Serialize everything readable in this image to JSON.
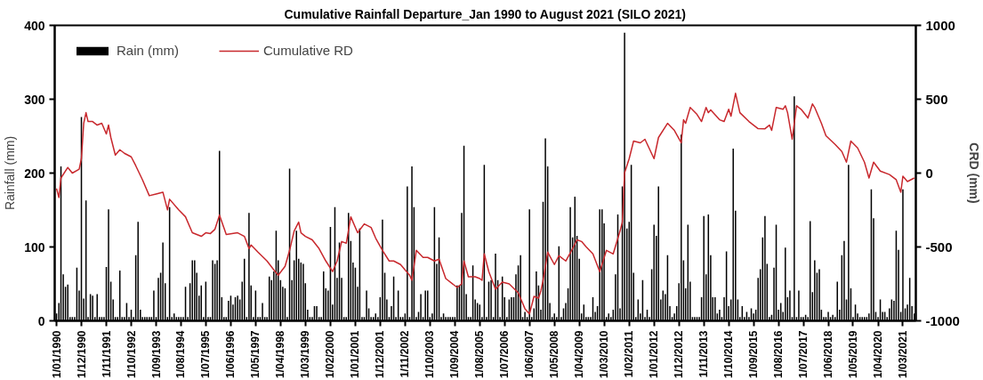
{
  "chart_data": {
    "type": "bar",
    "title": "Cumulative Rainfall Departure_Jan 1990 to August 2021 (SILO 2021)",
    "ylabel": "Rainfall (mm)",
    "y2label": "CRD (mm)",
    "xlim": [
      "1989-12-07",
      "2021-08-22"
    ],
    "xticks": [
      {
        "value": "1990-01-01",
        "label": "1/01/1990"
      },
      {
        "value": "1990-12-01",
        "label": "1/12/1990"
      },
      {
        "value": "1991-11-01",
        "label": "1/11/1991"
      },
      {
        "value": "1992-10-01",
        "label": "1/10/1992"
      },
      {
        "value": "1993-09-01",
        "label": "1/09/1993"
      },
      {
        "value": "1994-08-01",
        "label": "1/08/1994"
      },
      {
        "value": "1995-07-01",
        "label": "1/07/1995"
      },
      {
        "value": "1996-06-01",
        "label": "1/06/1996"
      },
      {
        "value": "1997-05-01",
        "label": "1/05/1997"
      },
      {
        "value": "1998-04-01",
        "label": "1/04/1998"
      },
      {
        "value": "1999-03-01",
        "label": "1/03/1999"
      },
      {
        "value": "2000-02-01",
        "label": "1/02/2000"
      },
      {
        "value": "2001-01-01",
        "label": "1/01/2001"
      },
      {
        "value": "2001-12-01",
        "label": "1/12/2001"
      },
      {
        "value": "2002-11-01",
        "label": "1/11/2002"
      },
      {
        "value": "2003-10-01",
        "label": "1/10/2003"
      },
      {
        "value": "2004-09-01",
        "label": "1/09/2004"
      },
      {
        "value": "2005-08-01",
        "label": "1/08/2005"
      },
      {
        "value": "2006-07-01",
        "label": "1/07/2006"
      },
      {
        "value": "2007-06-01",
        "label": "1/06/2007"
      },
      {
        "value": "2008-05-01",
        "label": "1/05/2008"
      },
      {
        "value": "2009-04-01",
        "label": "1/04/2009"
      },
      {
        "value": "2010-03-01",
        "label": "1/03/2010"
      },
      {
        "value": "2011-02-01",
        "label": "1/02/2011"
      },
      {
        "value": "2012-01-01",
        "label": "1/01/2012"
      },
      {
        "value": "2012-12-01",
        "label": "1/12/2012"
      },
      {
        "value": "2013-11-01",
        "label": "1/11/2013"
      },
      {
        "value": "2014-10-01",
        "label": "1/10/2014"
      },
      {
        "value": "2015-09-01",
        "label": "1/09/2015"
      },
      {
        "value": "2016-08-01",
        "label": "1/08/2016"
      },
      {
        "value": "2017-07-01",
        "label": "1/07/2017"
      },
      {
        "value": "2018-06-01",
        "label": "1/06/2018"
      },
      {
        "value": "2019-05-01",
        "label": "1/05/2019"
      },
      {
        "value": "2020-04-01",
        "label": "1/04/2020"
      },
      {
        "value": "2021-03-01",
        "label": "1/03/2021"
      }
    ],
    "ylim": [
      0,
      400
    ],
    "yticks": [
      0,
      100,
      200,
      300,
      400
    ],
    "y2lim": [
      -1000,
      1000
    ],
    "y2ticks": [
      -1000,
      -500,
      0,
      500,
      1000
    ],
    "grid": false,
    "legend": "top left",
    "series": [
      {
        "name": "Rain (mm)",
        "color": "#000000",
        "x": [
          "1990-01",
          "1990-02",
          "1990-03",
          "1990-04",
          "1990-05",
          "1990-06",
          "1990-07",
          "1990-08",
          "1990-09",
          "1990-10",
          "1990-11",
          "1990-12",
          "1991-01",
          "1991-02",
          "1991-03",
          "1991-04",
          "1991-05",
          "1991-06",
          "1991-07",
          "1991-08",
          "1991-09",
          "1991-10",
          "1991-11",
          "1991-12",
          "1992-01",
          "1992-02",
          "1992-03",
          "1992-04",
          "1992-05",
          "1992-06",
          "1992-07",
          "1992-08",
          "1992-09",
          "1992-10",
          "1992-11",
          "1992-12",
          "1993-01",
          "1993-02",
          "1993-03",
          "1993-04",
          "1993-05",
          "1993-06",
          "1993-07",
          "1993-08",
          "1993-09",
          "1993-10",
          "1993-11",
          "1993-12",
          "1994-01",
          "1994-02",
          "1994-03",
          "1994-04",
          "1994-05",
          "1994-06",
          "1994-07",
          "1994-08",
          "1994-09",
          "1994-10",
          "1994-11",
          "1994-12",
          "1995-01",
          "1995-02",
          "1995-03",
          "1995-04",
          "1995-05",
          "1995-06",
          "1995-07",
          "1995-08",
          "1995-09",
          "1995-10",
          "1995-11",
          "1995-12",
          "1996-01",
          "1996-02",
          "1996-03",
          "1996-04",
          "1996-05",
          "1996-06",
          "1996-07",
          "1996-08",
          "1996-09",
          "1996-10",
          "1996-11",
          "1996-12",
          "1997-01",
          "1997-02",
          "1997-03",
          "1997-04",
          "1997-05",
          "1997-06",
          "1997-07",
          "1997-08",
          "1997-09",
          "1997-10",
          "1997-11",
          "1997-12",
          "1998-01",
          "1998-02",
          "1998-03",
          "1998-04",
          "1998-05",
          "1998-06",
          "1998-07",
          "1998-08",
          "1998-09",
          "1998-10",
          "1998-11",
          "1998-12",
          "1999-01",
          "1999-02",
          "1999-03",
          "1999-04",
          "1999-05",
          "1999-06",
          "1999-07",
          "1999-08",
          "1999-09",
          "1999-10",
          "1999-11",
          "1999-12",
          "2000-01",
          "2000-02",
          "2000-03",
          "2000-04",
          "2000-05",
          "2000-06",
          "2000-07",
          "2000-08",
          "2000-09",
          "2000-10",
          "2000-11",
          "2000-12",
          "2001-01",
          "2001-02",
          "2001-03",
          "2001-04",
          "2001-05",
          "2001-06",
          "2001-07",
          "2001-08",
          "2001-09",
          "2001-10",
          "2001-11",
          "2001-12",
          "2002-01",
          "2002-02",
          "2002-03",
          "2002-04",
          "2002-05",
          "2002-06",
          "2002-07",
          "2002-08",
          "2002-09",
          "2002-10",
          "2002-11",
          "2002-12",
          "2003-01",
          "2003-02",
          "2003-03",
          "2003-04",
          "2003-05",
          "2003-06",
          "2003-07",
          "2003-08",
          "2003-09",
          "2003-10",
          "2003-11",
          "2003-12",
          "2004-01",
          "2004-02",
          "2004-03",
          "2004-04",
          "2004-05",
          "2004-06",
          "2004-07",
          "2004-08",
          "2004-09",
          "2004-10",
          "2004-11",
          "2004-12",
          "2005-01",
          "2005-02",
          "2005-03",
          "2005-04",
          "2005-05",
          "2005-06",
          "2005-07",
          "2005-08",
          "2005-09",
          "2005-10",
          "2005-11",
          "2005-12",
          "2006-01",
          "2006-02",
          "2006-03",
          "2006-04",
          "2006-05",
          "2006-06",
          "2006-07",
          "2006-08",
          "2006-09",
          "2006-10",
          "2006-11",
          "2006-12",
          "2007-01",
          "2007-02",
          "2007-03",
          "2007-04",
          "2007-05",
          "2007-06",
          "2007-07",
          "2007-08",
          "2007-09",
          "2007-10",
          "2007-11",
          "2007-12",
          "2008-01",
          "2008-02",
          "2008-03",
          "2008-04",
          "2008-05",
          "2008-06",
          "2008-07",
          "2008-08",
          "2008-09",
          "2008-10",
          "2008-11",
          "2008-12",
          "2009-01",
          "2009-02",
          "2009-03",
          "2009-04",
          "2009-05",
          "2009-06",
          "2009-07",
          "2009-08",
          "2009-09",
          "2009-10",
          "2009-11",
          "2009-12",
          "2010-01",
          "2010-02",
          "2010-03",
          "2010-04",
          "2010-05",
          "2010-06",
          "2010-07",
          "2010-08",
          "2010-09",
          "2010-10",
          "2010-11",
          "2010-12",
          "2011-01",
          "2011-02",
          "2011-03",
          "2011-04",
          "2011-05",
          "2011-06",
          "2011-07",
          "2011-08",
          "2011-09",
          "2011-10",
          "2011-11",
          "2011-12",
          "2012-01",
          "2012-02",
          "2012-03",
          "2012-04",
          "2012-05",
          "2012-06",
          "2012-07",
          "2012-08",
          "2012-09",
          "2012-10",
          "2012-11",
          "2012-12",
          "2013-01",
          "2013-02",
          "2013-03",
          "2013-04",
          "2013-05",
          "2013-06",
          "2013-07",
          "2013-08",
          "2013-09",
          "2013-10",
          "2013-11",
          "2013-12",
          "2014-01",
          "2014-02",
          "2014-03",
          "2014-04",
          "2014-05",
          "2014-06",
          "2014-07",
          "2014-08",
          "2014-09",
          "2014-10",
          "2014-11",
          "2014-12",
          "2015-01",
          "2015-02",
          "2015-03",
          "2015-04",
          "2015-05",
          "2015-06",
          "2015-07",
          "2015-08",
          "2015-09",
          "2015-10",
          "2015-11",
          "2015-12",
          "2016-01",
          "2016-02",
          "2016-03",
          "2016-04",
          "2016-05",
          "2016-06",
          "2016-07",
          "2016-08",
          "2016-09",
          "2016-10",
          "2016-11",
          "2016-12",
          "2017-01",
          "2017-02",
          "2017-03",
          "2017-04",
          "2017-05",
          "2017-06",
          "2017-07",
          "2017-08",
          "2017-09",
          "2017-10",
          "2017-11",
          "2017-12",
          "2018-01",
          "2018-02",
          "2018-03",
          "2018-04",
          "2018-05",
          "2018-06",
          "2018-07",
          "2018-08",
          "2018-09",
          "2018-10",
          "2018-11",
          "2018-12",
          "2019-01",
          "2019-02",
          "2019-03",
          "2019-04",
          "2019-05",
          "2019-06",
          "2019-07",
          "2019-08",
          "2019-09",
          "2019-10",
          "2019-11",
          "2019-12",
          "2020-01",
          "2020-02",
          "2020-03",
          "2020-04",
          "2020-05",
          "2020-06",
          "2020-07",
          "2020-08",
          "2020-09",
          "2020-10",
          "2020-11",
          "2020-12",
          "2021-01",
          "2021-02",
          "2021-03",
          "2021-04",
          "2021-05",
          "2021-06",
          "2021-07",
          "2021-08"
        ],
        "values": [
          10,
          24,
          209,
          63,
          46,
          49,
          5,
          5,
          5,
          72,
          41,
          276,
          30,
          163,
          5,
          36,
          34,
          5,
          36,
          5,
          5,
          5,
          73,
          151,
          53,
          29,
          5,
          5,
          68,
          5,
          5,
          24,
          5,
          15,
          5,
          89,
          134,
          15,
          5,
          5,
          5,
          5,
          5,
          41,
          5,
          58,
          65,
          106,
          51,
          5,
          154,
          5,
          10,
          5,
          5,
          5,
          5,
          46,
          5,
          51,
          82,
          82,
          65,
          34,
          48,
          5,
          53,
          5,
          5,
          82,
          77,
          82,
          230,
          32,
          5,
          5,
          27,
          34,
          22,
          32,
          34,
          29,
          53,
          84,
          5,
          146,
          48,
          5,
          41,
          5,
          5,
          24,
          5,
          5,
          60,
          55,
          67,
          122,
          82,
          55,
          46,
          44,
          5,
          206,
          55,
          82,
          122,
          84,
          79,
          77,
          51,
          15,
          5,
          5,
          20,
          20,
          5,
          5,
          67,
          44,
          41,
          127,
          22,
          154,
          58,
          106,
          58,
          5,
          5,
          146,
          108,
          79,
          72,
          46,
          125,
          5,
          5,
          41,
          17,
          5,
          5,
          10,
          5,
          32,
          137,
          65,
          29,
          5,
          20,
          60,
          5,
          41,
          5,
          5,
          10,
          182,
          5,
          209,
          154,
          5,
          12,
          36,
          5,
          41,
          41,
          5,
          10,
          154,
          77,
          113,
          5,
          10,
          5,
          5,
          5,
          5,
          5,
          48,
          48,
          146,
          237,
          36,
          5,
          5,
          75,
          29,
          24,
          22,
          5,
          211,
          5,
          53,
          55,
          5,
          91,
          55,
          5,
          60,
          32,
          5,
          29,
          32,
          32,
          63,
          75,
          89,
          5,
          12,
          5,
          151,
          5,
          17,
          67,
          48,
          15,
          161,
          247,
          209,
          24,
          5,
          10,
          5,
          101,
          5,
          17,
          24,
          44,
          154,
          113,
          168,
          115,
          84,
          10,
          22,
          5,
          5,
          5,
          32,
          12,
          20,
          151,
          151,
          132,
          5,
          10,
          5,
          15,
          63,
          144,
          17,
          182,
          390,
          125,
          134,
          211,
          65,
          5,
          29,
          10,
          55,
          5,
          15,
          5,
          70,
          130,
          115,
          182,
          29,
          41,
          36,
          89,
          20,
          5,
          10,
          20,
          51,
          252,
          82,
          44,
          130,
          53,
          5,
          5,
          5,
          5,
          32,
          142,
          63,
          144,
          89,
          32,
          32,
          10,
          15,
          5,
          32,
          94,
          20,
          29,
          233,
          149,
          29,
          5,
          20,
          5,
          12,
          5,
          17,
          10,
          15,
          58,
          70,
          113,
          142,
          77,
          5,
          8,
          72,
          130,
          15,
          24,
          12,
          99,
          32,
          41,
          5,
          304,
          5,
          41,
          5,
          5,
          8,
          5,
          135,
          39,
          82,
          65,
          70,
          15,
          5,
          5,
          12,
          5,
          8,
          5,
          53,
          15,
          89,
          108,
          29,
          211,
          44,
          5,
          22,
          10,
          5,
          5,
          5,
          5,
          10,
          178,
          139,
          12,
          5,
          29,
          12,
          12,
          5,
          17,
          29,
          27,
          122,
          96,
          12,
          178,
          17,
          22,
          58,
          20,
          10
        ]
      },
      {
        "name": "Cumulative RD",
        "type": "line",
        "axis": "y2",
        "color": "#c8282d",
        "x": [
          "1990-01",
          "1990-02",
          "1990-03",
          "1990-06",
          "1990-08",
          "1990-11",
          "1990-12",
          "1991-01",
          "1991-02",
          "1991-03",
          "1991-05",
          "1991-07",
          "1991-09",
          "1991-11",
          "1991-12",
          "1992-01",
          "1992-03",
          "1992-05",
          "1992-07",
          "1992-10",
          "1992-12",
          "1993-03",
          "1993-06",
          "1993-09",
          "1993-12",
          "1994-02",
          "1994-03",
          "1994-07",
          "1994-10",
          "1995-01",
          "1995-05",
          "1995-07",
          "1995-09",
          "1995-11",
          "1996-01",
          "1996-04",
          "1996-09",
          "1996-12",
          "1997-02",
          "1997-03",
          "1997-06",
          "1997-10",
          "1998-01",
          "1998-03",
          "1998-06",
          "1998-08",
          "1998-10",
          "1998-12",
          "1999-01",
          "1999-03",
          "1999-06",
          "1999-09",
          "1999-12",
          "2000-03",
          "2000-05",
          "2000-07",
          "2000-09",
          "2000-11",
          "2001-02",
          "2001-05",
          "2001-08",
          "2001-10",
          "2002-01",
          "2002-04",
          "2002-06",
          "2002-09",
          "2003-01",
          "2003-02",
          "2003-04",
          "2003-07",
          "2003-09",
          "2003-12",
          "2004-02",
          "2004-05",
          "2004-10",
          "2004-12",
          "2005-01",
          "2005-03",
          "2005-06",
          "2005-08",
          "2005-09",
          "2005-10",
          "2005-12",
          "2006-03",
          "2006-06",
          "2006-09",
          "2007-01",
          "2007-04",
          "2007-06",
          "2007-08",
          "2007-10",
          "2007-11",
          "2007-12",
          "2008-02",
          "2008-05",
          "2008-07",
          "2008-10",
          "2009-01",
          "2009-03",
          "2009-05",
          "2009-07",
          "2009-10",
          "2010-01",
          "2010-04",
          "2010-07",
          "2010-10",
          "2010-11",
          "2010-12",
          "2011-02",
          "2011-04",
          "2011-07",
          "2011-09",
          "2012-01",
          "2012-03",
          "2012-07",
          "2012-10",
          "2013-01",
          "2013-02",
          "2013-03",
          "2013-05",
          "2013-08",
          "2013-10",
          "2013-12",
          "2014-01",
          "2014-02",
          "2014-06",
          "2014-08",
          "2014-10",
          "2014-11",
          "2015-01",
          "2015-03",
          "2015-07",
          "2015-11",
          "2016-02",
          "2016-04",
          "2016-05",
          "2016-07",
          "2016-10",
          "2016-11",
          "2016-12",
          "2017-02",
          "2017-04",
          "2017-06",
          "2017-09",
          "2017-11",
          "2017-12",
          "2018-03",
          "2018-05",
          "2018-09",
          "2018-12",
          "2019-02",
          "2019-04",
          "2019-07",
          "2019-10",
          "2019-12",
          "2020-02",
          "2020-05",
          "2020-09",
          "2020-12",
          "2021-02",
          "2021-03",
          "2021-05",
          "2021-08"
        ],
        "values": [
          -105,
          -165,
          -33,
          38,
          0,
          26,
          98,
          337,
          409,
          349,
          349,
          325,
          337,
          265,
          325,
          241,
          122,
          158,
          134,
          110,
          50,
          -45,
          -153,
          -141,
          -129,
          -249,
          -177,
          -249,
          -296,
          -404,
          -428,
          -404,
          -409,
          -380,
          -284,
          -416,
          -404,
          -428,
          -511,
          -487,
          -535,
          -595,
          -655,
          -691,
          -631,
          -523,
          -392,
          -332,
          -404,
          -428,
          -452,
          -511,
          -595,
          -667,
          -595,
          -463,
          -475,
          -296,
          -404,
          -344,
          -368,
          -440,
          -523,
          -595,
          -595,
          -619,
          -691,
          -726,
          -523,
          -571,
          -571,
          -595,
          -583,
          -714,
          -774,
          -750,
          -595,
          -702,
          -702,
          -714,
          -726,
          -547,
          -667,
          -786,
          -738,
          -750,
          -810,
          -918,
          -953,
          -834,
          -846,
          -798,
          -726,
          -535,
          -619,
          -559,
          -595,
          -511,
          -452,
          -463,
          -499,
          -547,
          -667,
          -523,
          -547,
          -392,
          -332,
          2,
          98,
          217,
          205,
          229,
          98,
          241,
          337,
          289,
          205,
          361,
          337,
          444,
          397,
          349,
          444,
          409,
          428,
          361,
          349,
          432,
          385,
          540,
          409,
          349,
          301,
          300,
          325,
          289,
          444,
          432,
          456,
          409,
          229,
          456,
          432,
          373,
          468,
          444,
          337,
          253,
          194,
          146,
          74,
          217,
          170,
          74,
          -33,
          74,
          14,
          -10,
          -45,
          -129,
          -21,
          -57,
          -33
        ]
      }
    ]
  }
}
